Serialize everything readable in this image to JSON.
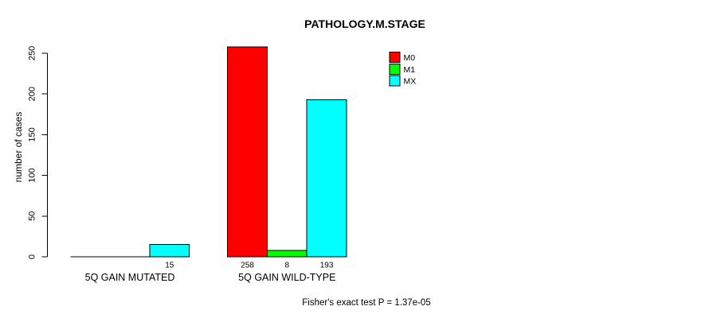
{
  "chart_data": {
    "type": "bar",
    "title": "PATHOLOGY.M.STAGE",
    "ylabel": "number of cases",
    "xlabel": "",
    "categories": [
      "5Q GAIN MUTATED",
      "5Q GAIN WILD-TYPE"
    ],
    "series": [
      {
        "name": "M0",
        "color": "#FF0000",
        "values": [
          0,
          258
        ]
      },
      {
        "name": "M1",
        "color": "#00FF00",
        "values": [
          0,
          8
        ]
      },
      {
        "name": "MX",
        "color": "#00FFFF",
        "values": [
          15,
          193
        ]
      }
    ],
    "yticks": [
      0,
      50,
      100,
      150,
      200,
      250
    ],
    "ylim": [
      0,
      260
    ],
    "grid": false,
    "bar_value_labels_shown": true,
    "zero_value_labels_hidden": true,
    "legend": {
      "position": "top-right",
      "entries": [
        "M0",
        "M1",
        "MX"
      ]
    },
    "annotation": "Fisher's exact test P = 1.37e-05"
  }
}
